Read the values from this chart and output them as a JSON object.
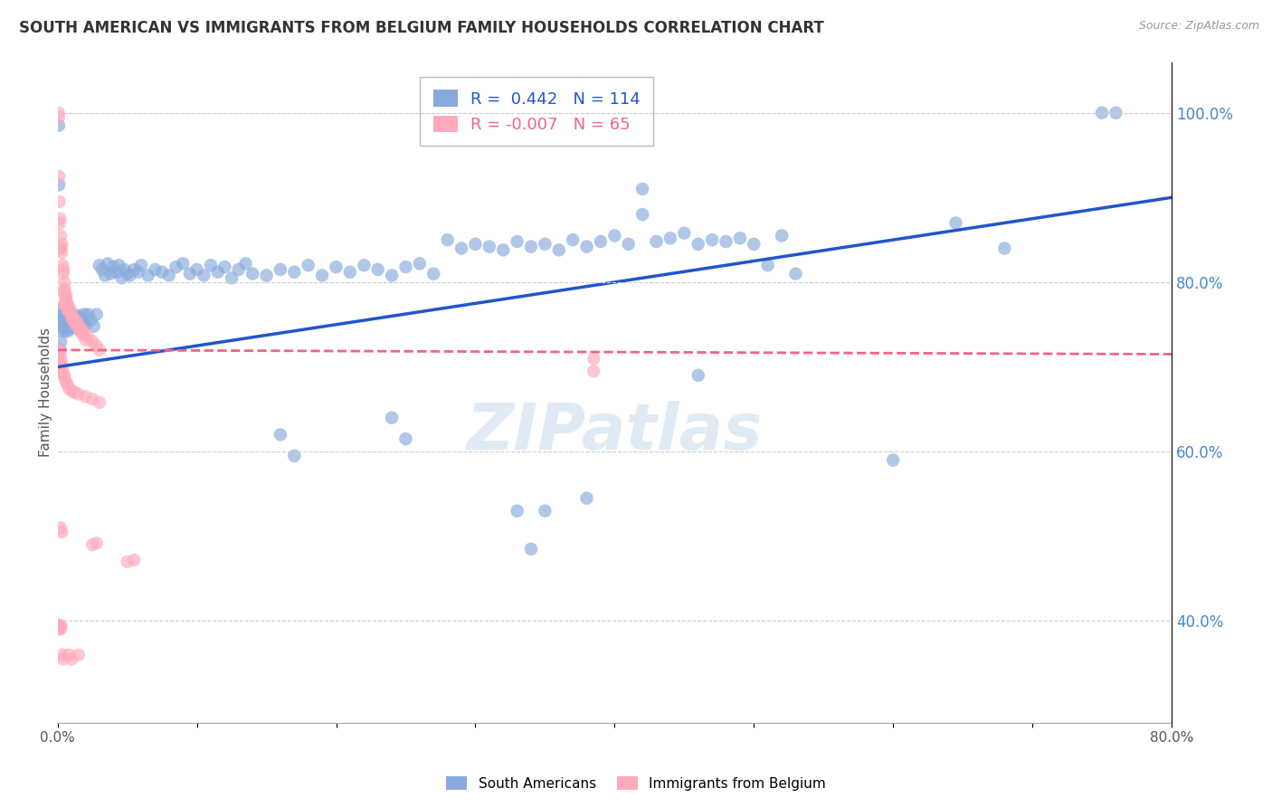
{
  "title": "SOUTH AMERICAN VS IMMIGRANTS FROM BELGIUM FAMILY HOUSEHOLDS CORRELATION CHART",
  "source": "Source: ZipAtlas.com",
  "ylabel": "Family Households",
  "legend_label1": "South Americans",
  "legend_label2": "Immigrants from Belgium",
  "R1": 0.442,
  "N1": 114,
  "R2": -0.007,
  "N2": 65,
  "color1": "#88AADD",
  "color2": "#FFAABB",
  "trendline1_color": "#2255CC",
  "trendline2_color": "#EE6688",
  "xmin": 0.0,
  "xmax": 0.8,
  "ymin": 0.28,
  "ymax": 1.06,
  "yticks": [
    0.4,
    0.6,
    0.8,
    1.0
  ],
  "xticks": [
    0.0,
    0.1,
    0.2,
    0.3,
    0.4,
    0.5,
    0.6,
    0.7,
    0.8
  ],
  "xtick_labels": [
    "0.0%",
    "",
    "",
    "",
    "",
    "",
    "",
    "",
    "80.0%"
  ],
  "watermark": "ZIPatlas",
  "blue_points": [
    [
      0.0008,
      0.985
    ],
    [
      0.001,
      0.915
    ],
    [
      0.0015,
      0.75
    ],
    [
      0.002,
      0.76
    ],
    [
      0.0018,
      0.72
    ],
    [
      0.0022,
      0.73
    ],
    [
      0.0025,
      0.755
    ],
    [
      0.003,
      0.76
    ],
    [
      0.0032,
      0.745
    ],
    [
      0.0035,
      0.77
    ],
    [
      0.0038,
      0.755
    ],
    [
      0.004,
      0.75
    ],
    [
      0.0042,
      0.758
    ],
    [
      0.0045,
      0.742
    ],
    [
      0.0048,
      0.762
    ],
    [
      0.005,
      0.75
    ],
    [
      0.0052,
      0.755
    ],
    [
      0.0055,
      0.748
    ],
    [
      0.0058,
      0.752
    ],
    [
      0.006,
      0.745
    ],
    [
      0.0062,
      0.758
    ],
    [
      0.0065,
      0.748
    ],
    [
      0.0068,
      0.762
    ],
    [
      0.007,
      0.755
    ],
    [
      0.0072,
      0.742
    ],
    [
      0.0075,
      0.76
    ],
    [
      0.008,
      0.75
    ],
    [
      0.009,
      0.745
    ],
    [
      0.01,
      0.755
    ],
    [
      0.011,
      0.748
    ],
    [
      0.012,
      0.762
    ],
    [
      0.013,
      0.752
    ],
    [
      0.014,
      0.758
    ],
    [
      0.015,
      0.745
    ],
    [
      0.016,
      0.76
    ],
    [
      0.017,
      0.748
    ],
    [
      0.018,
      0.755
    ],
    [
      0.019,
      0.762
    ],
    [
      0.02,
      0.75
    ],
    [
      0.022,
      0.762
    ],
    [
      0.024,
      0.755
    ],
    [
      0.026,
      0.748
    ],
    [
      0.028,
      0.762
    ],
    [
      0.03,
      0.82
    ],
    [
      0.032,
      0.815
    ],
    [
      0.034,
      0.808
    ],
    [
      0.036,
      0.822
    ],
    [
      0.038,
      0.81
    ],
    [
      0.04,
      0.818
    ],
    [
      0.042,
      0.812
    ],
    [
      0.044,
      0.82
    ],
    [
      0.046,
      0.805
    ],
    [
      0.048,
      0.815
    ],
    [
      0.05,
      0.81
    ],
    [
      0.052,
      0.808
    ],
    [
      0.055,
      0.815
    ],
    [
      0.058,
      0.812
    ],
    [
      0.06,
      0.82
    ],
    [
      0.065,
      0.808
    ],
    [
      0.07,
      0.815
    ],
    [
      0.075,
      0.812
    ],
    [
      0.08,
      0.808
    ],
    [
      0.085,
      0.818
    ],
    [
      0.09,
      0.822
    ],
    [
      0.095,
      0.81
    ],
    [
      0.1,
      0.815
    ],
    [
      0.105,
      0.808
    ],
    [
      0.11,
      0.82
    ],
    [
      0.115,
      0.812
    ],
    [
      0.12,
      0.818
    ],
    [
      0.125,
      0.805
    ],
    [
      0.13,
      0.815
    ],
    [
      0.135,
      0.822
    ],
    [
      0.14,
      0.81
    ],
    [
      0.15,
      0.808
    ],
    [
      0.16,
      0.815
    ],
    [
      0.17,
      0.812
    ],
    [
      0.18,
      0.82
    ],
    [
      0.19,
      0.808
    ],
    [
      0.2,
      0.818
    ],
    [
      0.21,
      0.812
    ],
    [
      0.22,
      0.82
    ],
    [
      0.23,
      0.815
    ],
    [
      0.24,
      0.808
    ],
    [
      0.25,
      0.818
    ],
    [
      0.26,
      0.822
    ],
    [
      0.27,
      0.81
    ],
    [
      0.28,
      0.85
    ],
    [
      0.29,
      0.84
    ],
    [
      0.3,
      0.845
    ],
    [
      0.31,
      0.842
    ],
    [
      0.32,
      0.838
    ],
    [
      0.33,
      0.848
    ],
    [
      0.34,
      0.842
    ],
    [
      0.35,
      0.845
    ],
    [
      0.36,
      0.838
    ],
    [
      0.37,
      0.85
    ],
    [
      0.38,
      0.842
    ],
    [
      0.39,
      0.848
    ],
    [
      0.4,
      0.855
    ],
    [
      0.41,
      0.845
    ],
    [
      0.42,
      0.88
    ],
    [
      0.43,
      0.848
    ],
    [
      0.44,
      0.852
    ],
    [
      0.45,
      0.858
    ],
    [
      0.46,
      0.845
    ],
    [
      0.47,
      0.85
    ],
    [
      0.48,
      0.848
    ],
    [
      0.49,
      0.852
    ],
    [
      0.5,
      0.845
    ],
    [
      0.51,
      0.82
    ],
    [
      0.52,
      0.855
    ],
    [
      0.53,
      0.81
    ],
    [
      0.42,
      0.91
    ],
    [
      0.6,
      0.59
    ],
    [
      0.645,
      0.87
    ],
    [
      0.68,
      0.84
    ],
    [
      0.75,
      1.0
    ],
    [
      0.76,
      1.0
    ],
    [
      0.16,
      0.62
    ],
    [
      0.17,
      0.595
    ],
    [
      0.24,
      0.64
    ],
    [
      0.25,
      0.615
    ],
    [
      0.33,
      0.53
    ],
    [
      0.34,
      0.485
    ],
    [
      0.35,
      0.53
    ],
    [
      0.38,
      0.545
    ],
    [
      0.46,
      0.69
    ]
  ],
  "pink_points": [
    [
      0.0005,
      1.0
    ],
    [
      0.0008,
      0.995
    ],
    [
      0.001,
      0.925
    ],
    [
      0.0012,
      0.895
    ],
    [
      0.0015,
      0.87
    ],
    [
      0.0018,
      0.875
    ],
    [
      0.002,
      0.84
    ],
    [
      0.0022,
      0.855
    ],
    [
      0.0025,
      0.84
    ],
    [
      0.003,
      0.835
    ],
    [
      0.0032,
      0.845
    ],
    [
      0.0035,
      0.82
    ],
    [
      0.004,
      0.81
    ],
    [
      0.0042,
      0.815
    ],
    [
      0.0045,
      0.79
    ],
    [
      0.0048,
      0.8
    ],
    [
      0.005,
      0.785
    ],
    [
      0.0052,
      0.792
    ],
    [
      0.0055,
      0.778
    ],
    [
      0.006,
      0.78
    ],
    [
      0.0062,
      0.785
    ],
    [
      0.0065,
      0.77
    ],
    [
      0.007,
      0.775
    ],
    [
      0.0072,
      0.768
    ],
    [
      0.0075,
      0.772
    ],
    [
      0.008,
      0.765
    ],
    [
      0.009,
      0.768
    ],
    [
      0.01,
      0.758
    ],
    [
      0.011,
      0.76
    ],
    [
      0.012,
      0.752
    ],
    [
      0.013,
      0.755
    ],
    [
      0.014,
      0.748
    ],
    [
      0.015,
      0.75
    ],
    [
      0.016,
      0.742
    ],
    [
      0.017,
      0.745
    ],
    [
      0.018,
      0.738
    ],
    [
      0.019,
      0.74
    ],
    [
      0.02,
      0.732
    ],
    [
      0.022,
      0.735
    ],
    [
      0.025,
      0.73
    ],
    [
      0.028,
      0.725
    ],
    [
      0.03,
      0.72
    ],
    [
      0.0008,
      0.72
    ],
    [
      0.001,
      0.715
    ],
    [
      0.0015,
      0.718
    ],
    [
      0.002,
      0.712
    ],
    [
      0.0018,
      0.708
    ],
    [
      0.003,
      0.705
    ],
    [
      0.0022,
      0.7
    ],
    [
      0.0025,
      0.698
    ],
    [
      0.004,
      0.695
    ],
    [
      0.0045,
      0.69
    ],
    [
      0.005,
      0.688
    ],
    [
      0.006,
      0.682
    ],
    [
      0.007,
      0.68
    ],
    [
      0.008,
      0.675
    ],
    [
      0.01,
      0.672
    ],
    [
      0.012,
      0.67
    ],
    [
      0.015,
      0.668
    ],
    [
      0.02,
      0.665
    ],
    [
      0.025,
      0.662
    ],
    [
      0.03,
      0.658
    ],
    [
      0.002,
      0.51
    ],
    [
      0.003,
      0.505
    ],
    [
      0.025,
      0.49
    ],
    [
      0.028,
      0.492
    ],
    [
      0.05,
      0.47
    ],
    [
      0.055,
      0.472
    ],
    [
      0.0005,
      0.395
    ],
    [
      0.0008,
      0.392
    ],
    [
      0.001,
      0.395
    ],
    [
      0.0015,
      0.39
    ],
    [
      0.002,
      0.395
    ],
    [
      0.0025,
      0.392
    ],
    [
      0.003,
      0.36
    ],
    [
      0.004,
      0.355
    ],
    [
      0.008,
      0.36
    ],
    [
      0.01,
      0.355
    ],
    [
      0.015,
      0.36
    ],
    [
      0.385,
      0.71
    ],
    [
      0.385,
      0.695
    ]
  ],
  "trendline1_x": [
    0.0,
    0.8
  ],
  "trendline1_y": [
    0.7,
    0.9
  ],
  "trendline2_x": [
    0.0,
    0.8
  ],
  "trendline2_y": [
    0.72,
    0.715
  ],
  "background_color": "#ffffff",
  "grid_color": "#cccccc",
  "title_fontsize": 12,
  "axis_label_fontsize": 11,
  "tick_fontsize": 11,
  "watermark_fontsize": 52,
  "watermark_color": "#99BBDD",
  "watermark_alpha": 0.3
}
